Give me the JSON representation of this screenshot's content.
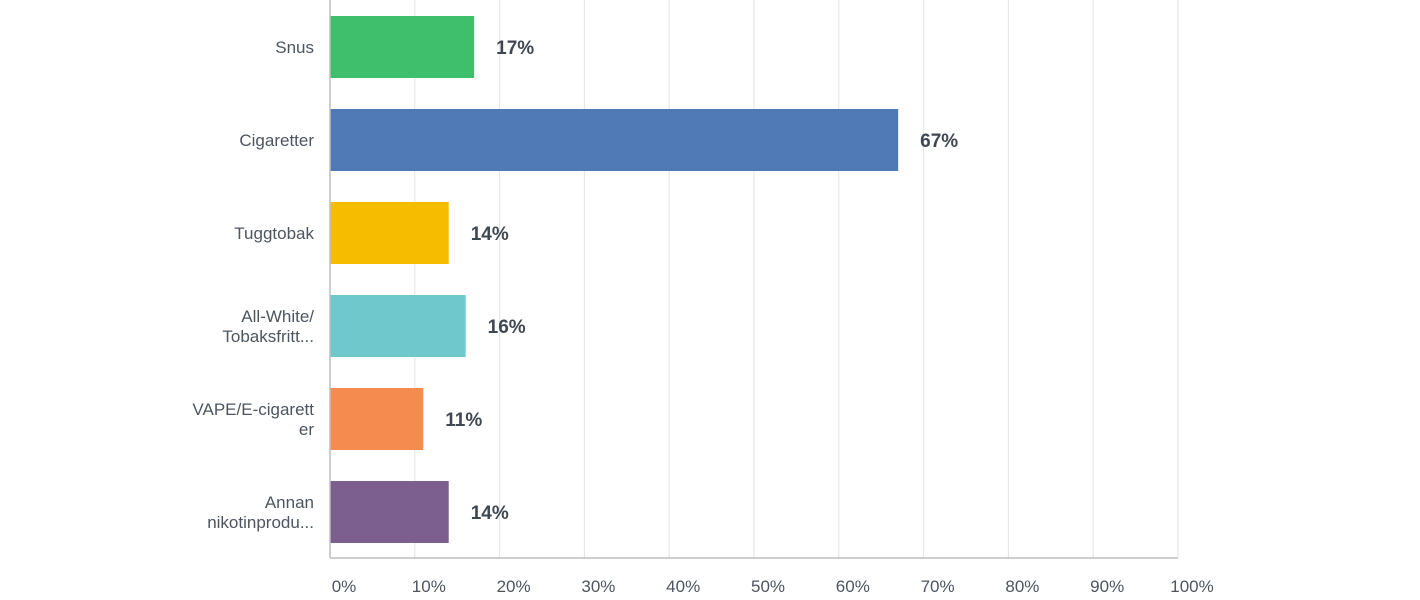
{
  "chart_data": {
    "type": "bar",
    "orientation": "horizontal",
    "categories": [
      [
        "Snus"
      ],
      [
        "Cigaretter"
      ],
      [
        "Tuggtobak"
      ],
      [
        "All-White/",
        "Tobaksfritt..."
      ],
      [
        "VAPE/E-cigarett",
        "er"
      ],
      [
        "Annan",
        "nikotinprodu..."
      ]
    ],
    "values": [
      17,
      67,
      14,
      16,
      11,
      14
    ],
    "value_labels": [
      "17%",
      "67%",
      "14%",
      "16%",
      "11%",
      "14%"
    ],
    "colors": [
      "#3fbf6b",
      "#4f7ab5",
      "#f6bd00",
      "#6ec8cc",
      "#f68b4f",
      "#7c5f8f"
    ],
    "xlim": [
      0,
      100
    ],
    "xticks": [
      "0%",
      "10%",
      "20%",
      "30%",
      "40%",
      "50%",
      "60%",
      "70%",
      "80%",
      "90%",
      "100%"
    ],
    "grid": true,
    "title": "",
    "xlabel": "",
    "ylabel": ""
  }
}
